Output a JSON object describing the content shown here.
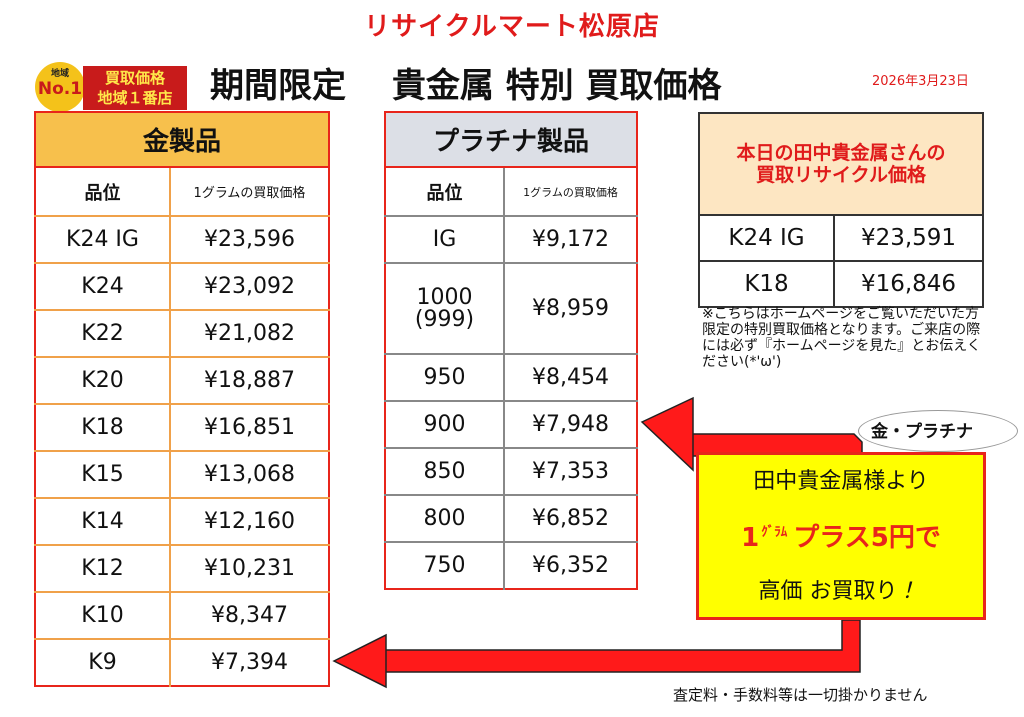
{
  "header": {
    "store_name": "リサイクルマート松原店",
    "badge_top": "地域",
    "badge_no1": "No.1",
    "badge_line1": "買取価格",
    "badge_line2": "地域１番店",
    "title": "期間限定　 貴金属 特別 買取価格",
    "date": "2026年3月23日"
  },
  "gold_table": {
    "title": "金製品",
    "col_grade": "品位",
    "col_price": "1グラムの買取価格",
    "rows": [
      {
        "grade": "K24 IG",
        "price": "¥23,596"
      },
      {
        "grade": "K24",
        "price": "¥23,092"
      },
      {
        "grade": "K22",
        "price": "¥21,082"
      },
      {
        "grade": "K20",
        "price": "¥18,887"
      },
      {
        "grade": "K18",
        "price": "¥16,851"
      },
      {
        "grade": "K15",
        "price": "¥13,068"
      },
      {
        "grade": "K14",
        "price": "¥12,160"
      },
      {
        "grade": "K12",
        "price": "¥10,231"
      },
      {
        "grade": "K10",
        "price": "¥8,347"
      },
      {
        "grade": "K9",
        "price": "¥7,394"
      }
    ]
  },
  "platinum_table": {
    "title": "プラチナ製品",
    "col_grade": "品位",
    "col_price": "1グラムの買取価格",
    "rows": [
      {
        "grade": "IG",
        "price": "¥9,172"
      },
      {
        "grade": "1000",
        "grade_sub": "(999)",
        "price": "¥8,959"
      },
      {
        "grade": "950",
        "price": "¥8,454"
      },
      {
        "grade": "900",
        "price": "¥7,948"
      },
      {
        "grade": "850",
        "price": "¥7,353"
      },
      {
        "grade": "800",
        "price": "¥6,852"
      },
      {
        "grade": "750",
        "price": "¥6,352"
      }
    ]
  },
  "tanaka_table": {
    "title_line1": "本日の田中貴金属さんの",
    "title_line2": "買取リサイクル価格",
    "rows": [
      {
        "grade": "K24 IG",
        "price": "¥23,591"
      },
      {
        "grade": "K18",
        "price": "¥16,846"
      }
    ]
  },
  "note": "※こちらはホームページをご覧いただいた方限定の特別買取価格となります。ご来店の際には必ず『ホームページを見た』とお伝えください(*'ω')",
  "bubble": "金・プラチナ",
  "promo": {
    "line1": "田中貴金属様より",
    "line2_num": "1",
    "line2_unit": "ｸﾞﾗﾑ",
    "line2_text": "プラス5円で",
    "line3": "高価 お買取り",
    "line3_mark": "！"
  },
  "footer": "査定料・手数料等は一切掛かりません",
  "colors": {
    "red": "#e8251b",
    "gold_header": "#f7c04c",
    "platinum_header": "#dcdfe6",
    "tanaka_header": "#fde6c2",
    "promo_bg": "#ffff00"
  }
}
